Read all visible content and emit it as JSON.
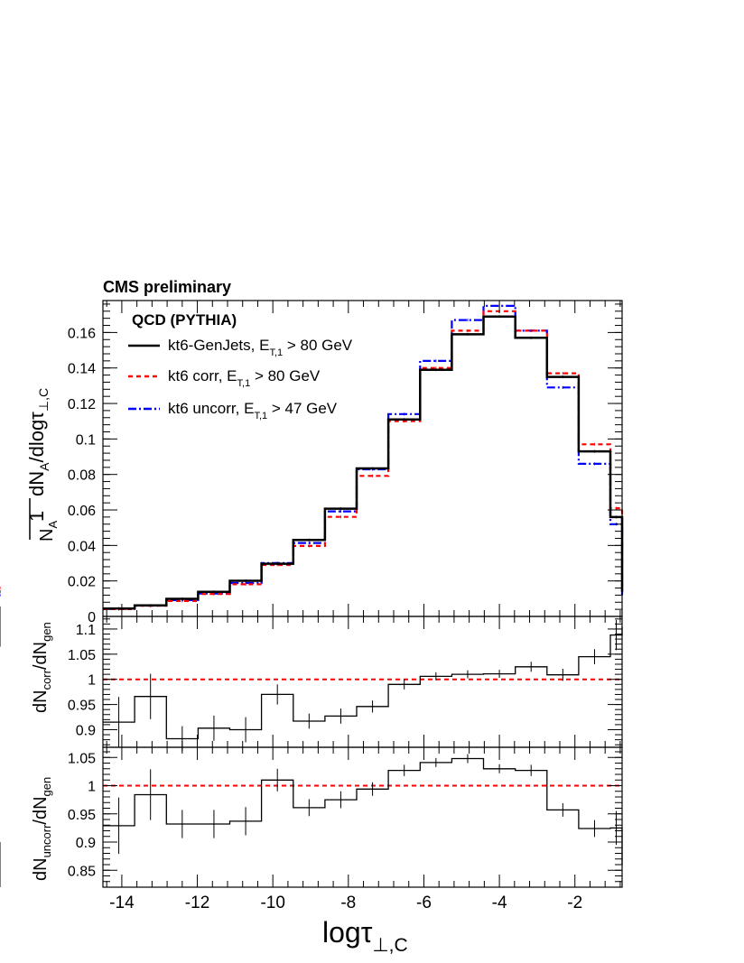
{
  "header": {
    "label": "CMS preliminary"
  },
  "colors": {
    "gen": "#000000",
    "corr": "#ff0000",
    "uncorr": "#0000ff",
    "reference": "#ff0000",
    "ratio": "#000000"
  },
  "chart_data": [
    {
      "id": "main",
      "type": "line",
      "step": true,
      "legend_title": "QCD (PYTHIA)",
      "legend_position": "top-left",
      "ylabel": "1/N_A dN_A/dlogτ⊥,C",
      "xlim": [
        -14.5,
        -0.75
      ],
      "ylim": [
        0,
        0.178
      ],
      "yticks": [
        0.02,
        0.04,
        0.06,
        0.08,
        0.1,
        0.12,
        0.14,
        0.16
      ],
      "ytick_labels": [
        "0.02",
        "0.04",
        "0.06",
        "0.08",
        "0.1",
        "0.12",
        "0.14",
        "0.16"
      ],
      "bottom_tick_label": "0",
      "bin_edges": [
        -14.5,
        -13.66,
        -12.82,
        -11.98,
        -11.14,
        -10.3,
        -9.46,
        -8.62,
        -7.78,
        -6.94,
        -6.1,
        -5.26,
        -4.42,
        -3.58,
        -2.74,
        -1.9,
        -1.06,
        -0.75
      ],
      "series": [
        {
          "name": "kt6-GenJets, E_T,1 > 80 GeV",
          "style": "solid",
          "values": [
            0.0045,
            0.0062,
            0.0099,
            0.0139,
            0.0201,
            0.0297,
            0.0431,
            0.0607,
            0.0834,
            0.111,
            0.139,
            0.159,
            0.169,
            0.157,
            0.135,
            0.093,
            0.056,
            0.014
          ]
        },
        {
          "name": "kt6 corr, E_T,1 > 80 GeV",
          "style": "dashed",
          "values": [
            0.0041,
            0.006,
            0.0087,
            0.0126,
            0.0181,
            0.029,
            0.0397,
            0.0561,
            0.0792,
            0.11,
            0.14,
            0.161,
            0.172,
            0.161,
            0.137,
            0.097,
            0.061,
            0.016
          ]
        },
        {
          "name": "kt6 uncorr, E_T,1 > 47 GeV",
          "style": "dashdot",
          "values": [
            0.0042,
            0.0061,
            0.0092,
            0.0129,
            0.0188,
            0.0301,
            0.0414,
            0.0592,
            0.0829,
            0.114,
            0.144,
            0.167,
            0.175,
            0.161,
            0.129,
            0.086,
            0.052,
            0.012
          ]
        }
      ]
    },
    {
      "id": "ratio_corr",
      "type": "line",
      "step": true,
      "ylabel": "dNcorr/dNgen",
      "ylim": [
        0.865,
        1.125
      ],
      "yticks": [
        0.9,
        0.95,
        1,
        1.05,
        1.1
      ],
      "ytick_labels": [
        "0.9",
        "0.95",
        "1",
        "1.05",
        "1.1"
      ],
      "reference_line": 1,
      "bin_edges": [
        -14.5,
        -13.66,
        -12.82,
        -11.98,
        -11.14,
        -10.3,
        -9.46,
        -8.62,
        -7.78,
        -6.94,
        -6.1,
        -5.26,
        -4.42,
        -3.58,
        -2.74,
        -1.9,
        -1.06,
        -0.75
      ],
      "values": [
        0.915,
        0.966,
        0.882,
        0.903,
        0.9,
        0.97,
        0.917,
        0.927,
        0.946,
        0.99,
        1.006,
        1.01,
        1.011,
        1.025,
        1.009,
        1.045,
        1.088,
        1.105
      ],
      "errors": [
        0.05,
        0.045,
        0.025,
        0.025,
        0.025,
        0.02,
        0.015,
        0.015,
        0.012,
        0.01,
        0.008,
        0.008,
        0.008,
        0.01,
        0.012,
        0.015,
        0.03,
        0.04
      ]
    },
    {
      "id": "ratio_uncorr",
      "type": "line",
      "step": true,
      "ylabel": "dNuncorr/dNgen",
      "xlabel": "logτ⊥,C",
      "ylim": [
        0.82,
        1.068
      ],
      "yticks": [
        0.85,
        0.9,
        0.95,
        1,
        1.05
      ],
      "ytick_labels": [
        "0.85",
        "0.9",
        "0.95",
        "1",
        "1.05"
      ],
      "xticks": [
        -14,
        -12,
        -10,
        -8,
        -6,
        -4,
        -2
      ],
      "xtick_labels": [
        "-14",
        "-12",
        "-10",
        "-8",
        "-6",
        "-4",
        "-2"
      ],
      "reference_line": 1,
      "bin_edges": [
        -14.5,
        -13.66,
        -12.82,
        -11.98,
        -11.14,
        -10.3,
        -9.46,
        -8.62,
        -7.78,
        -6.94,
        -6.1,
        -5.26,
        -4.42,
        -3.58,
        -2.74,
        -1.9,
        -1.06,
        -0.75
      ],
      "values": [
        0.929,
        0.984,
        0.932,
        0.932,
        0.937,
        1.01,
        0.961,
        0.975,
        0.994,
        1.027,
        1.041,
        1.048,
        1.03,
        1.027,
        0.957,
        0.924,
        0.925,
        0.86
      ],
      "errors": [
        0.05,
        0.045,
        0.025,
        0.025,
        0.025,
        0.02,
        0.015,
        0.015,
        0.012,
        0.01,
        0.008,
        0.008,
        0.008,
        0.01,
        0.012,
        0.015,
        0.03,
        0.04
      ]
    }
  ]
}
